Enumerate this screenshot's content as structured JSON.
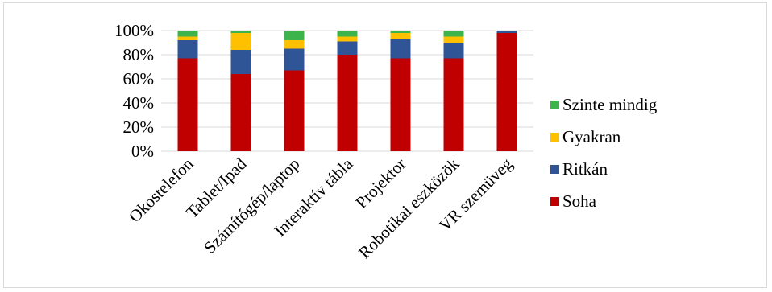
{
  "chart_data": {
    "type": "bar",
    "stacked": true,
    "percent": true,
    "categories": [
      "Okostelefon",
      "Tablet/Ipad",
      "Számítógép/laptop",
      "Interaktív tábla",
      "Projektor",
      "Robotikai eszközök",
      "VR szemüveg"
    ],
    "series": [
      {
        "name": "Soha",
        "color": "#c00000",
        "values": [
          77,
          64,
          67,
          80,
          77,
          77,
          98
        ]
      },
      {
        "name": "Ritkán",
        "color": "#2f5597",
        "values": [
          15,
          20,
          18,
          11,
          16,
          13,
          2
        ]
      },
      {
        "name": "Gyakran",
        "color": "#ffc000",
        "values": [
          3,
          14,
          7,
          4,
          5,
          5,
          0
        ]
      },
      {
        "name": "Szinte mindig",
        "color": "#3cb44b",
        "values": [
          5,
          2,
          8,
          5,
          2,
          5,
          0
        ]
      }
    ],
    "ylim": [
      0,
      100
    ],
    "yticks": [
      "0%",
      "20%",
      "40%",
      "60%",
      "80%",
      "100%"
    ],
    "grid": true,
    "legend": "right",
    "legend_order": [
      "Szinte mindig",
      "Gyakran",
      "Ritkán",
      "Soha"
    ],
    "title": "",
    "xlabel": "",
    "ylabel": ""
  }
}
